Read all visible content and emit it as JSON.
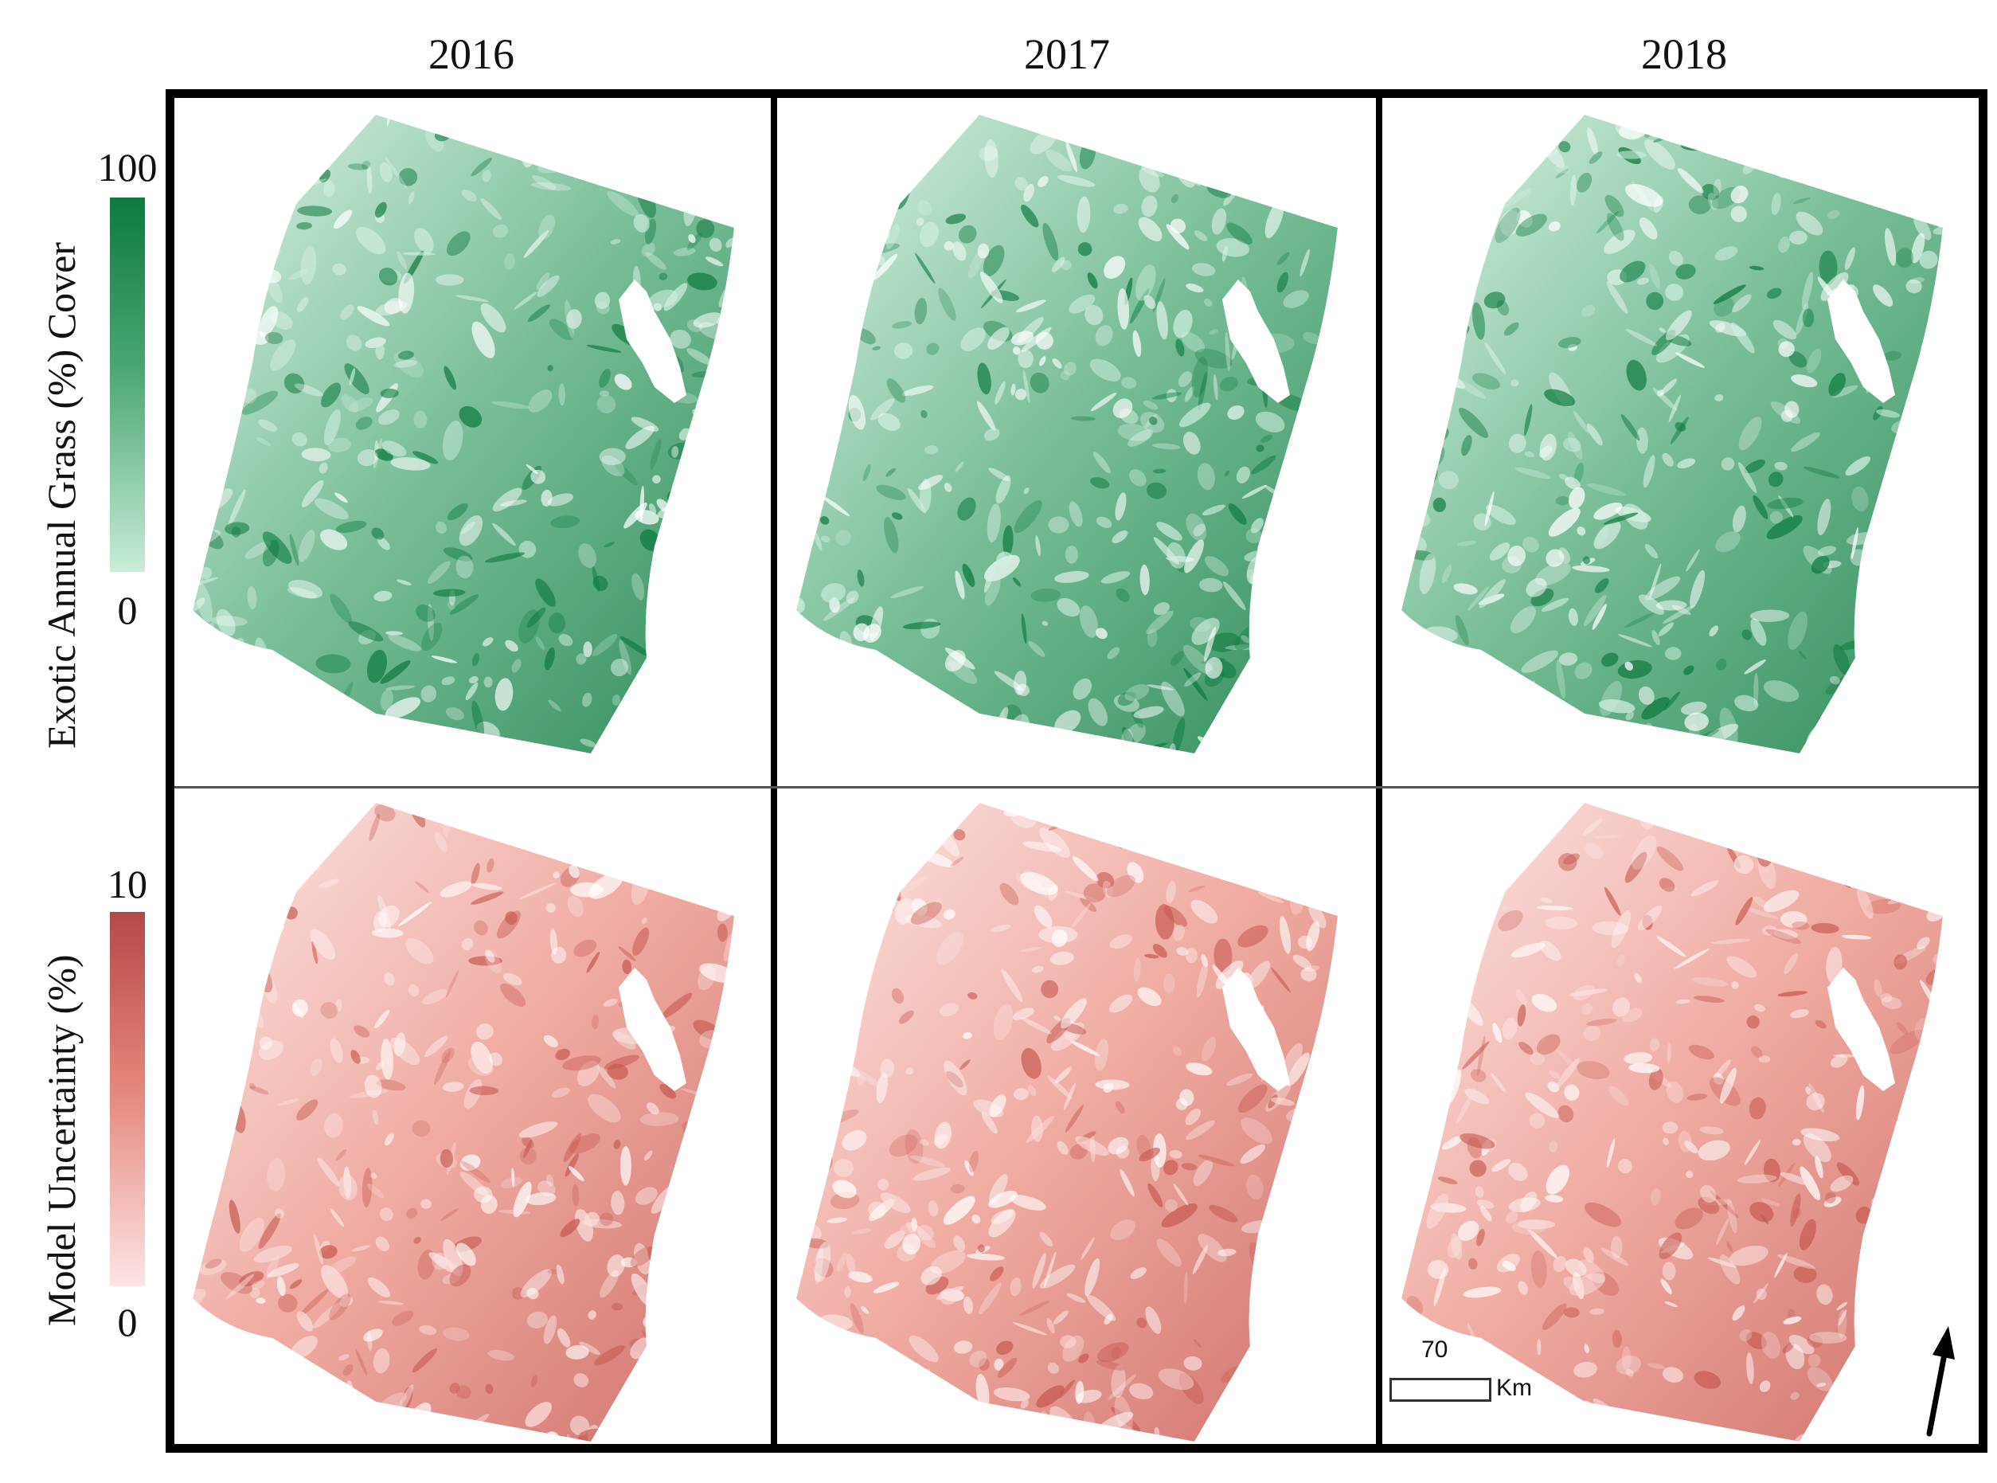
{
  "columns": [
    "2016",
    "2017",
    "2018"
  ],
  "rows": [
    {
      "title": "Exotic Annual Grass (%) Cover",
      "legend_max": "100",
      "legend_min": "0",
      "colors": {
        "low": "#d2efe0",
        "mid": "#5fb184",
        "high": "#0e7a40"
      }
    },
    {
      "title": "Model Uncertainty (%)",
      "legend_max": "10",
      "legend_min": "0",
      "colors": {
        "low": "#fbe0df",
        "mid": "#ec9b90",
        "high": "#c75a52"
      }
    }
  ],
  "scale_bar": {
    "distance": "70",
    "unit": "Km"
  },
  "north_arrow_icon": "north-arrow-icon"
}
